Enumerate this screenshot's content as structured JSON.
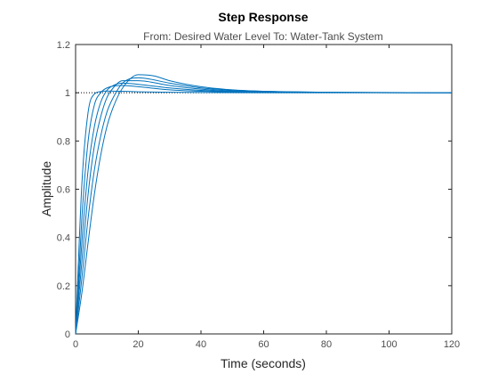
{
  "chart_data": {
    "type": "line",
    "title": "Step Response",
    "subtitle": "From: Desired  Water Level  To: Water-Tank System",
    "xlabel": "Time (seconds)",
    "ylabel": "Amplitude",
    "xlim": [
      0,
      120
    ],
    "ylim": [
      0,
      1.2
    ],
    "xticks": [
      0,
      20,
      40,
      60,
      80,
      100,
      120
    ],
    "yticks": [
      0,
      0.2,
      0.4,
      0.6,
      0.8,
      1,
      1.2
    ],
    "grid": false,
    "reference_line": {
      "y": 1,
      "style": "dotted"
    },
    "line_color": "#0072bd",
    "series": [
      {
        "x": [
          0,
          2,
          4,
          6,
          8,
          10,
          15,
          20,
          30,
          40,
          60,
          80,
          120
        ],
        "y": [
          0,
          0.62,
          0.92,
          0.995,
          1.005,
          1.007,
          1.006,
          1.004,
          1.002,
          1.001,
          1.0,
          1.0,
          1.0
        ]
      },
      {
        "x": [
          0,
          2,
          4,
          6,
          8,
          10,
          15,
          20,
          30,
          40,
          60,
          80,
          120
        ],
        "y": [
          0,
          0.48,
          0.8,
          0.95,
          1.0,
          1.02,
          1.03,
          1.025,
          1.012,
          1.006,
          1.002,
          1.001,
          1.0
        ]
      },
      {
        "x": [
          0,
          2,
          4,
          6,
          8,
          10,
          12,
          15,
          20,
          30,
          40,
          60,
          80,
          120
        ],
        "y": [
          0,
          0.38,
          0.68,
          0.86,
          0.96,
          1.01,
          1.03,
          1.04,
          1.035,
          1.02,
          1.01,
          1.003,
          1.001,
          1.0
        ]
      },
      {
        "x": [
          0,
          2,
          4,
          6,
          8,
          10,
          12,
          15,
          20,
          30,
          40,
          60,
          80,
          120
        ],
        "y": [
          0,
          0.3,
          0.58,
          0.78,
          0.9,
          0.98,
          1.02,
          1.05,
          1.05,
          1.03,
          1.015,
          1.004,
          1.001,
          1.0
        ]
      },
      {
        "x": [
          0,
          2,
          4,
          6,
          8,
          10,
          12,
          15,
          20,
          30,
          40,
          60,
          80,
          120
        ],
        "y": [
          0,
          0.23,
          0.48,
          0.68,
          0.82,
          0.92,
          0.98,
          1.04,
          1.062,
          1.04,
          1.02,
          1.006,
          1.002,
          1.0
        ]
      },
      {
        "x": [
          0,
          2,
          4,
          6,
          8,
          10,
          12,
          15,
          20,
          25,
          30,
          40,
          50,
          60,
          80,
          120
        ],
        "y": [
          0,
          0.17,
          0.38,
          0.58,
          0.74,
          0.86,
          0.94,
          1.02,
          1.075,
          1.07,
          1.05,
          1.025,
          1.012,
          1.006,
          1.002,
          1.0
        ]
      }
    ]
  }
}
